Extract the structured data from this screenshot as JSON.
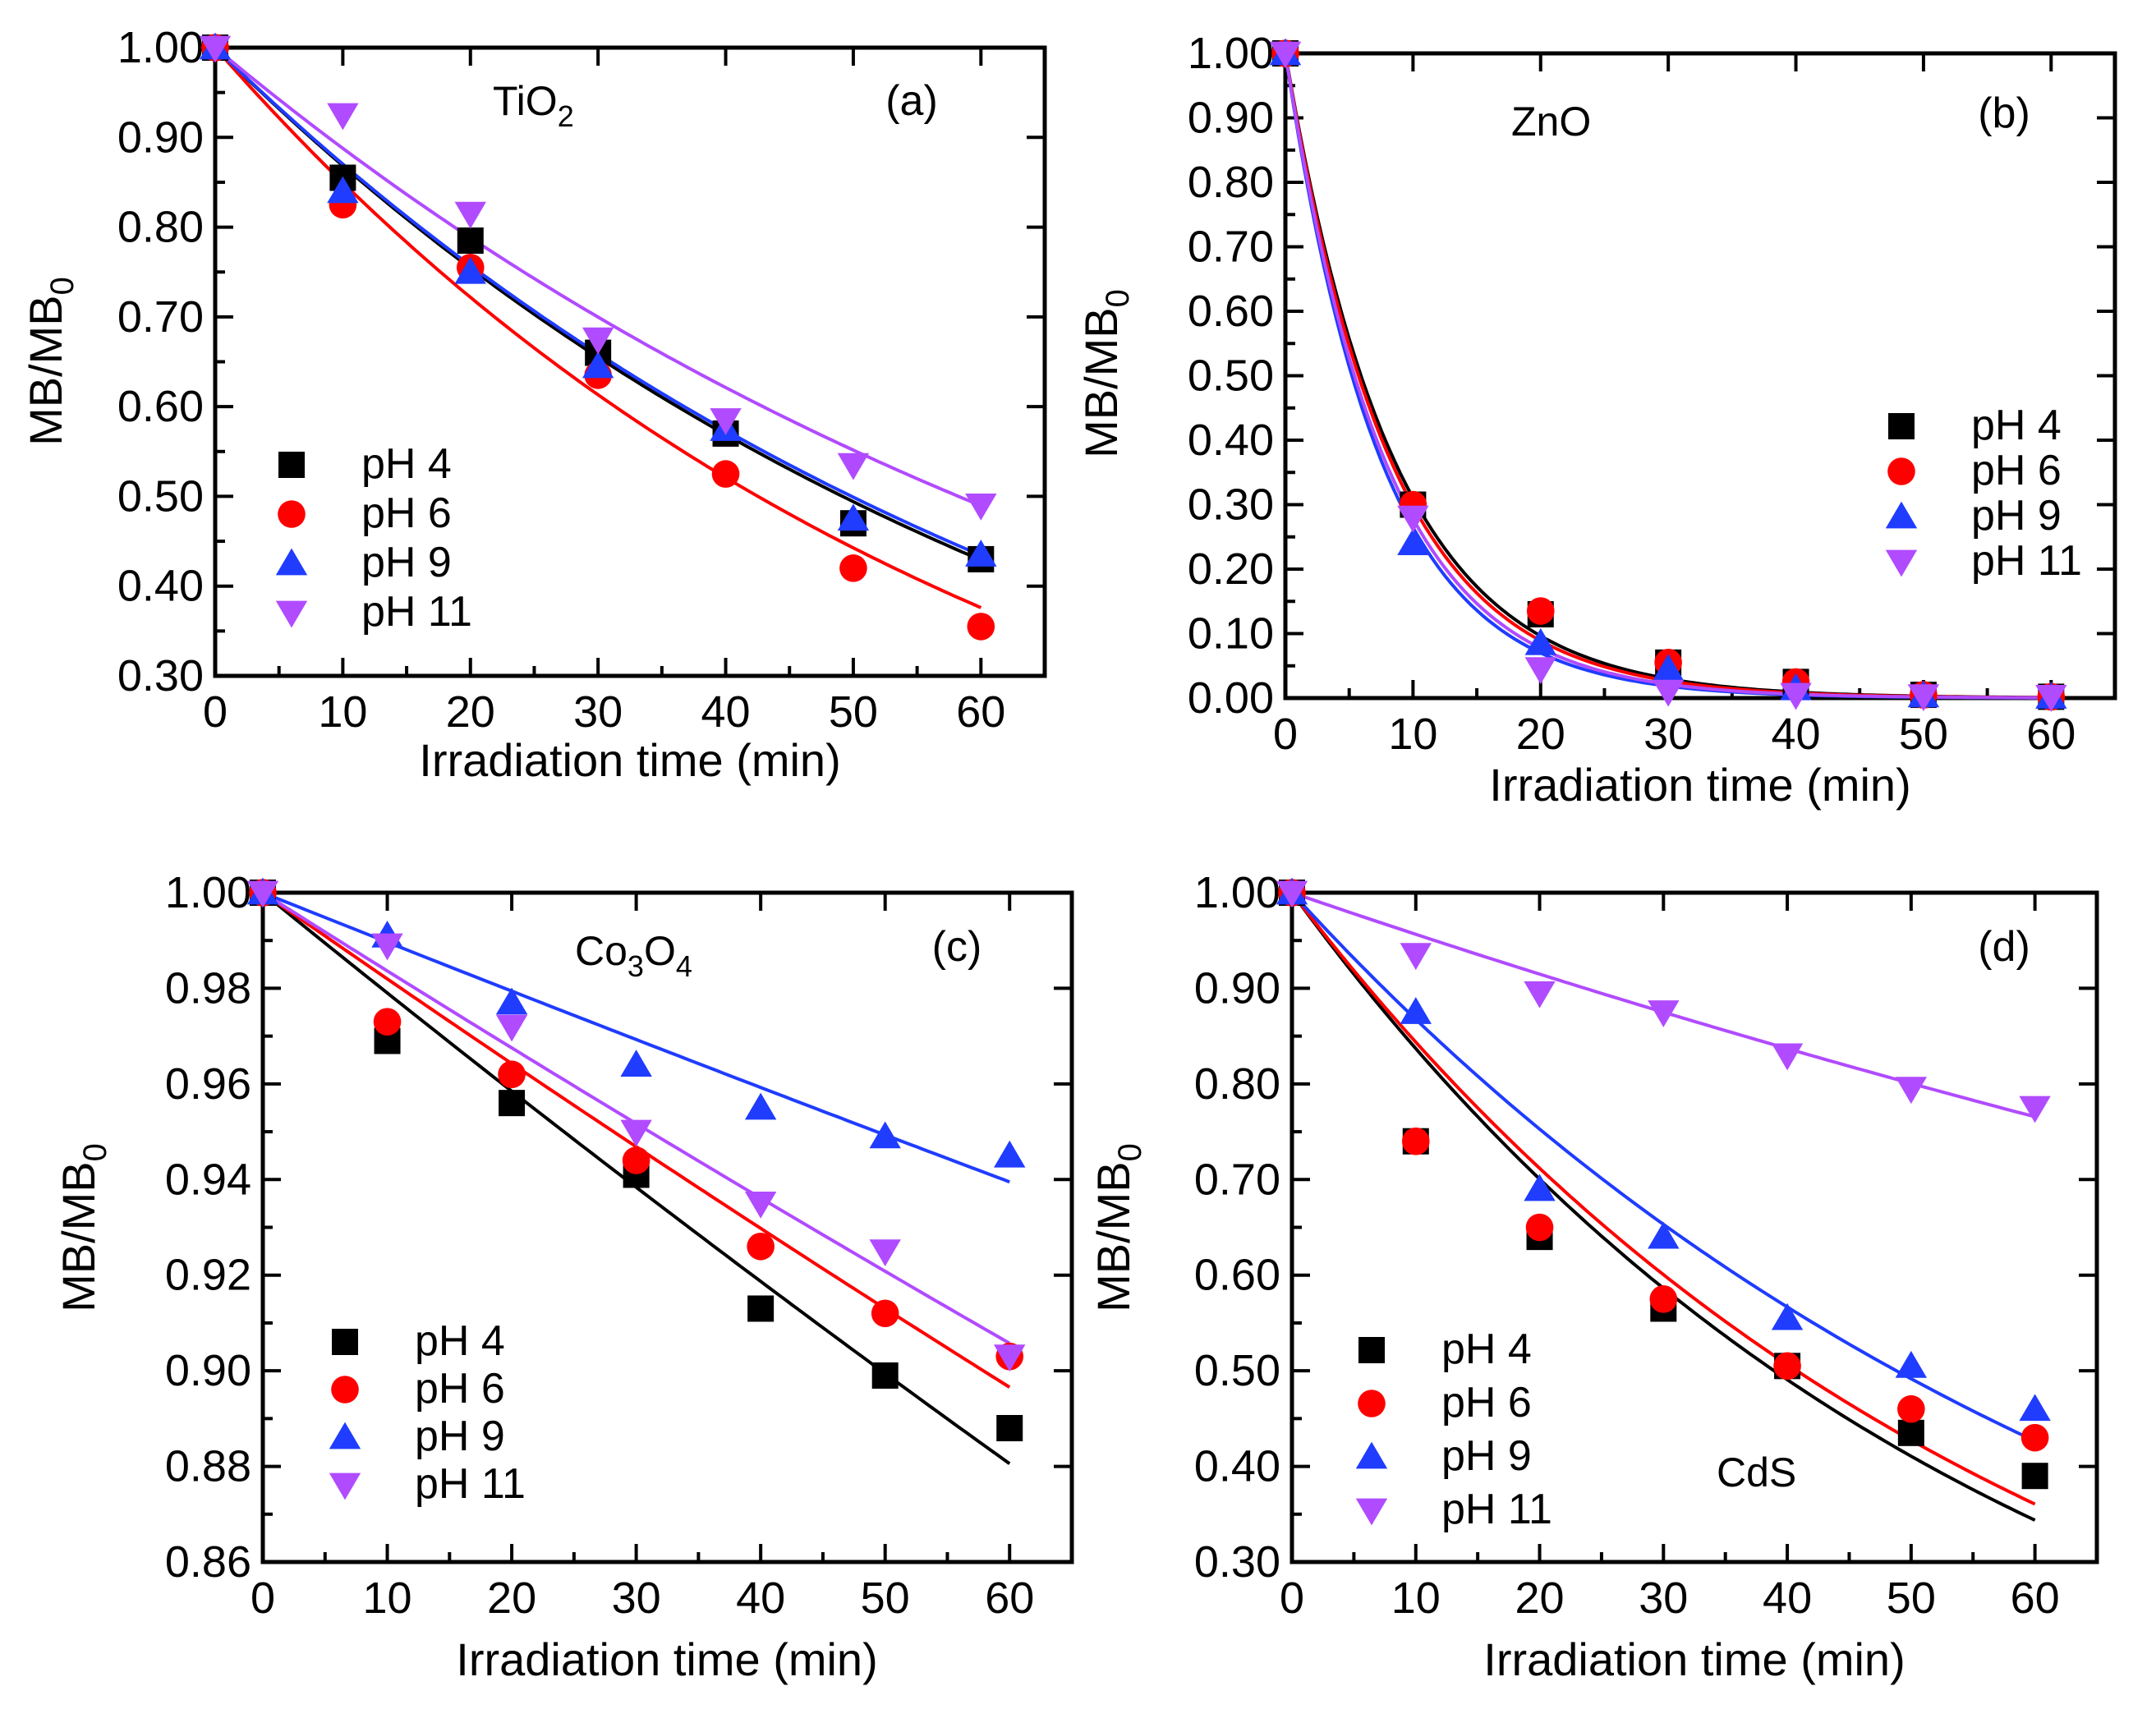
{
  "colors": {
    "pH 4": "#000000",
    "pH 6": "#ff0000",
    "pH 9": "#1f3cff",
    "pH 11": "#b14bff"
  },
  "chart_data": [
    {
      "type": "scatter",
      "panel_label": "(a)",
      "title_main": "TiO",
      "title_sub": "2",
      "title_tail": "",
      "xlabel": "Irradiation time (min)",
      "ylabel_main": "MB/MB",
      "ylabel_sub": "0",
      "xlim": [
        0,
        65
      ],
      "ylim": [
        0.3,
        1.0
      ],
      "xticks": [
        0,
        10,
        20,
        30,
        40,
        50,
        60
      ],
      "xtick_labels": [
        "0",
        "10",
        "20",
        "30",
        "40",
        "50",
        "60"
      ],
      "yticks": [
        0.3,
        0.4,
        0.5,
        0.6,
        0.7,
        0.8,
        0.9,
        1.0
      ],
      "ytick_labels": [
        "0.30",
        "0.40",
        "0.50",
        "0.60",
        "0.70",
        "0.80",
        "0.90",
        "1.00"
      ],
      "legend_position": "bottom-left",
      "x": [
        0,
        10,
        20,
        30,
        40,
        50,
        60
      ],
      "series": [
        {
          "name": "pH 4",
          "marker": "square",
          "values": [
            1.0,
            0.855,
            0.785,
            0.66,
            0.57,
            0.47,
            0.43
          ],
          "fit_k": 0.0141
        },
        {
          "name": "pH 6",
          "marker": "circle",
          "values": [
            1.0,
            0.825,
            0.755,
            0.635,
            0.525,
            0.42,
            0.355
          ],
          "fit_k": 0.0163
        },
        {
          "name": "pH 9",
          "marker": "triangle-up",
          "values": [
            1.0,
            0.84,
            0.75,
            0.645,
            0.575,
            0.475,
            0.435
          ],
          "fit_k": 0.0139
        },
        {
          "name": "pH 11",
          "marker": "triangle-down",
          "values": [
            1.0,
            0.925,
            0.815,
            0.675,
            0.585,
            0.535,
            0.49
          ],
          "fit_k": 0.0119
        }
      ]
    },
    {
      "type": "scatter",
      "panel_label": "(b)",
      "title_main": "ZnO",
      "title_sub": "",
      "title_tail": "",
      "xlabel": "Irradiation time (min)",
      "ylabel_main": "MB/MB",
      "ylabel_sub": "0",
      "xlim": [
        0,
        65
      ],
      "ylim": [
        0.0,
        1.0
      ],
      "xticks": [
        0,
        10,
        20,
        30,
        40,
        50,
        60
      ],
      "xtick_labels": [
        "0",
        "10",
        "20",
        "30",
        "40",
        "50",
        "60"
      ],
      "yticks": [
        0.0,
        0.1,
        0.2,
        0.3,
        0.4,
        0.5,
        0.6,
        0.7,
        0.8,
        0.9,
        1.0
      ],
      "ytick_labels": [
        "0.00",
        "0.10",
        "0.20",
        "0.30",
        "0.40",
        "0.50",
        "0.60",
        "0.70",
        "0.80",
        "0.90",
        "1.00"
      ],
      "legend_position": "middle-right",
      "x": [
        0,
        10,
        20,
        30,
        40,
        50,
        60
      ],
      "series": [
        {
          "name": "pH 4",
          "marker": "square",
          "values": [
            1.0,
            0.3,
            0.13,
            0.055,
            0.025,
            0.005,
            0.002
          ],
          "fit_k": 0.117
        },
        {
          "name": "pH 6",
          "marker": "circle",
          "values": [
            1.0,
            0.3,
            0.135,
            0.055,
            0.025,
            0.005,
            0.002
          ],
          "fit_k": 0.121
        },
        {
          "name": "pH 9",
          "marker": "triangle-up",
          "values": [
            1.0,
            0.24,
            0.085,
            0.045,
            0.015,
            0.004,
            0.002
          ],
          "fit_k": 0.133
        },
        {
          "name": "pH 11",
          "marker": "triangle-down",
          "values": [
            1.0,
            0.28,
            0.045,
            0.01,
            0.005,
            0.003,
            0.002
          ],
          "fit_k": 0.128
        }
      ]
    },
    {
      "type": "scatter",
      "panel_label": "(c)",
      "title_main": "Co",
      "title_sub": "3",
      "title_tail": "O",
      "title_sub2": "4",
      "xlabel": "Irradiation time (min)",
      "ylabel_main": "MB/MB",
      "ylabel_sub": "0",
      "xlim": [
        0,
        65
      ],
      "ylim": [
        0.86,
        1.0
      ],
      "xticks": [
        0,
        10,
        20,
        30,
        40,
        50,
        60
      ],
      "xtick_labels": [
        "0",
        "10",
        "20",
        "30",
        "40",
        "50",
        "60"
      ],
      "yticks": [
        0.86,
        0.88,
        0.9,
        0.92,
        0.94,
        0.96,
        0.98,
        1.0
      ],
      "ytick_labels": [
        "0.86",
        "0.88",
        "0.90",
        "0.92",
        "0.94",
        "0.96",
        "0.98",
        "1.00"
      ],
      "legend_position": "bottom-left",
      "x": [
        0,
        10,
        20,
        30,
        40,
        50,
        60
      ],
      "series": [
        {
          "name": "pH 4",
          "marker": "square",
          "values": [
            1.0,
            0.969,
            0.956,
            0.941,
            0.913,
            0.899,
            0.888
          ],
          "fit_k": 0.00212
        },
        {
          "name": "pH 6",
          "marker": "circle",
          "values": [
            1.0,
            0.973,
            0.962,
            0.944,
            0.926,
            0.912,
            0.903
          ],
          "fit_k": 0.00182
        },
        {
          "name": "pH 9",
          "marker": "triangle-up",
          "values": [
            1.0,
            0.991,
            0.977,
            0.964,
            0.955,
            0.949,
            0.945
          ],
          "fit_k": 0.00104
        },
        {
          "name": "pH 11",
          "marker": "triangle-down",
          "values": [
            1.0,
            0.989,
            0.972,
            0.95,
            0.935,
            0.925,
            0.903
          ],
          "fit_k": 0.00165
        }
      ]
    },
    {
      "type": "scatter",
      "panel_label": "(d)",
      "title_main": "CdS",
      "title_sub": "",
      "title_tail": "",
      "xlabel": "Irradiation time (min)",
      "ylabel_main": "MB/MB",
      "ylabel_sub": "0",
      "xlim": [
        0,
        65
      ],
      "ylim": [
        0.3,
        1.0
      ],
      "xticks": [
        0,
        10,
        20,
        30,
        40,
        50,
        60
      ],
      "xtick_labels": [
        "0",
        "10",
        "20",
        "30",
        "40",
        "50",
        "60"
      ],
      "yticks": [
        0.3,
        0.4,
        0.5,
        0.6,
        0.7,
        0.8,
        0.9,
        1.0
      ],
      "ytick_labels": [
        "0.30",
        "0.40",
        "0.50",
        "0.60",
        "0.70",
        "0.80",
        "0.90",
        "1.00"
      ],
      "legend_position": "bottom-left",
      "x": [
        0,
        10,
        20,
        30,
        40,
        50,
        60
      ],
      "series": [
        {
          "name": "pH 4",
          "marker": "square",
          "values": [
            1.0,
            0.74,
            0.64,
            0.565,
            0.505,
            0.435,
            0.39
          ],
          "fit_k": 0.0178
        },
        {
          "name": "pH 6",
          "marker": "circle",
          "values": [
            1.0,
            0.74,
            0.65,
            0.575,
            0.505,
            0.46,
            0.43
          ],
          "fit_k": 0.017
        },
        {
          "name": "pH 9",
          "marker": "triangle-up",
          "values": [
            1.0,
            0.875,
            0.69,
            0.64,
            0.555,
            0.505,
            0.46
          ],
          "fit_k": 0.0142
        },
        {
          "name": "pH 11",
          "marker": "triangle-down",
          "values": [
            1.0,
            0.935,
            0.895,
            0.875,
            0.83,
            0.795,
            0.775
          ],
          "fit_k": 0.00445
        }
      ]
    }
  ]
}
